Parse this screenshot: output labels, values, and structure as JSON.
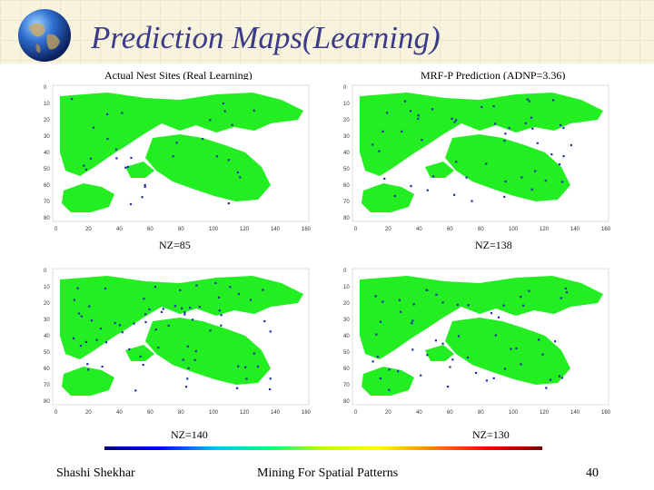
{
  "slide": {
    "title": "Prediction Maps(Learning)",
    "sublabel_left": "Actual Nest Sites (Real Learning)",
    "sublabel_right": "MRF-P Prediction (ADNP=3.36)",
    "footer_author": "Shashi Shekhar",
    "footer_center": "Mining For Spatial Patterns",
    "page_number": "40"
  },
  "maps": [
    {
      "nz_label": "NZ=85",
      "x_ticks": [
        "0",
        "20",
        "40",
        "60",
        "80",
        "100",
        "120",
        "140",
        "160"
      ],
      "y_ticks": [
        "0",
        "10",
        "20",
        "30",
        "40",
        "50",
        "60",
        "70",
        "80"
      ]
    },
    {
      "nz_label": "NZ=138",
      "x_ticks": [
        "0",
        "20",
        "40",
        "60",
        "80",
        "100",
        "120",
        "140",
        "160"
      ],
      "y_ticks": [
        "0",
        "10",
        "20",
        "30",
        "40",
        "50",
        "60",
        "70",
        "80"
      ]
    },
    {
      "nz_label": "NZ=140",
      "x_ticks": [
        "0",
        "20",
        "40",
        "60",
        "80",
        "100",
        "120",
        "140",
        "160"
      ],
      "y_ticks": [
        "0",
        "10",
        "20",
        "30",
        "40",
        "50",
        "60",
        "70",
        "80"
      ]
    },
    {
      "nz_label": "NZ=130",
      "x_ticks": [
        "0",
        "20",
        "40",
        "60",
        "80",
        "100",
        "120",
        "140",
        "160"
      ],
      "y_ticks": [
        "0",
        "10",
        "20",
        "30",
        "40",
        "50",
        "60",
        "70",
        "80"
      ]
    }
  ],
  "colors": {
    "map_green": "#22ee22",
    "nest_blue": "#1f2fa8",
    "title_color": "#3b3b8a"
  },
  "icons": [
    "globe-icon"
  ]
}
